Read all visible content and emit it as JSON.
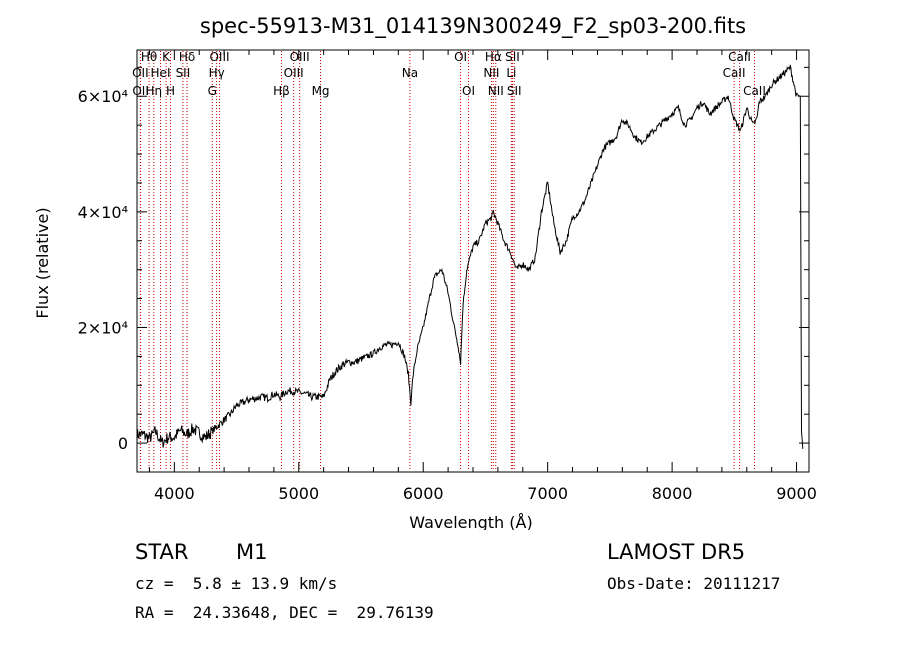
{
  "chart_data": {
    "type": "line",
    "title": "spec-55913-M31_014139N300249_F2_sp03-200.fits",
    "xlabel": "Wavelength (Å)",
    "ylabel": "Flux (relative)",
    "xlim": [
      3700,
      9100
    ],
    "ylim": [
      -5000,
      68000
    ],
    "x_ticks": [
      4000,
      5000,
      6000,
      7000,
      8000,
      9000
    ],
    "x_tick_labels": [
      "4000",
      "5000",
      "6000",
      "7000",
      "8000",
      "9000"
    ],
    "y_ticks": [
      0,
      20000,
      40000,
      60000
    ],
    "y_tick_labels": [
      "0",
      "2×10⁴",
      "4×10⁴",
      "6×10⁴"
    ],
    "grid": false,
    "line_color": "#000000",
    "marker_color": "#cc0000",
    "series": [
      {
        "x": [
          3700,
          3750,
          3800,
          3850,
          3900,
          3950,
          4000,
          4050,
          4100,
          4150,
          4200,
          4250,
          4300,
          4350,
          4400,
          4450,
          4500,
          4550,
          4600,
          4650,
          4700,
          4750,
          4800,
          4850,
          4900,
          4950,
          5000,
          5050,
          5100,
          5150,
          5200,
          5250,
          5300,
          5350,
          5400,
          5450,
          5500,
          5550,
          5600,
          5650,
          5700,
          5750,
          5800,
          5850,
          5880,
          5900,
          5920,
          5950,
          6000,
          6050,
          6080,
          6100,
          6150,
          6200,
          6250,
          6280,
          6300,
          6320,
          6350,
          6400,
          6450,
          6500,
          6550,
          6563,
          6600,
          6650,
          6700,
          6750,
          6800,
          6850,
          6900,
          6950,
          7000,
          7050,
          7100,
          7150,
          7200,
          7250,
          7300,
          7350,
          7400,
          7450,
          7500,
          7550,
          7600,
          7650,
          7700,
          7750,
          7800,
          7850,
          7900,
          7950,
          8000,
          8050,
          8100,
          8150,
          8200,
          8250,
          8300,
          8350,
          8400,
          8450,
          8500,
          8550,
          8600,
          8650,
          8680,
          8700,
          8750,
          8800,
          8850,
          8900,
          8950,
          9000,
          9030,
          9040,
          9050
        ],
        "y": [
          1500,
          1500,
          800,
          2000,
          0,
          1000,
          1000,
          2200,
          1500,
          2500,
          1700,
          1000,
          2000,
          3000,
          4000,
          5000,
          6500,
          7000,
          7500,
          7700,
          8000,
          7800,
          8500,
          8000,
          9000,
          9000,
          8800,
          8500,
          8000,
          8000,
          8000,
          11000,
          12500,
          13500,
          14000,
          14000,
          14500,
          15000,
          15500,
          16500,
          17000,
          17000,
          17500,
          15000,
          12000,
          7000,
          12000,
          16000,
          20000,
          25000,
          28000,
          29000,
          30000,
          26000,
          20000,
          17000,
          14000,
          24000,
          30000,
          34000,
          35000,
          38000,
          39000,
          40000,
          38000,
          35000,
          33000,
          30000,
          31000,
          30000,
          32000,
          40000,
          45000,
          38000,
          33000,
          35000,
          39000,
          40000,
          42000,
          45000,
          48000,
          51000,
          52000,
          53000,
          56000,
          55000,
          53000,
          52000,
          53000,
          54000,
          55000,
          56000,
          57000,
          58000,
          55000,
          56000,
          58000,
          59000,
          57000,
          58000,
          59000,
          60000,
          56000,
          54000,
          58000,
          55000,
          56000,
          59000,
          60000,
          62000,
          63000,
          64000,
          65000,
          60000,
          60000,
          2000,
          -1000
        ]
      }
    ],
    "lines": [
      {
        "name": "Hθ",
        "x": 3797
      },
      {
        "name": "OII",
        "x": 3727
      },
      {
        "name": "OII",
        "x": 3729
      },
      {
        "name": "HeI",
        "x": 3889
      },
      {
        "name": "Hη",
        "x": 3835
      },
      {
        "name": "K",
        "x": 3934
      },
      {
        "name": "H",
        "x": 3969
      },
      {
        "name": "SII",
        "x": 4069
      },
      {
        "name": "Hδ",
        "x": 4102
      },
      {
        "name": "OIII",
        "x": 4363
      },
      {
        "name": "Hγ",
        "x": 4340
      },
      {
        "name": "G",
        "x": 4305
      },
      {
        "name": "Hβ",
        "x": 4861
      },
      {
        "name": "OIII",
        "x": 5007
      },
      {
        "name": "OIII",
        "x": 4959
      },
      {
        "name": "Mg",
        "x": 5175
      },
      {
        "name": "Na",
        "x": 5893
      },
      {
        "name": "OI",
        "x": 6300
      },
      {
        "name": "OI",
        "x": 6364
      },
      {
        "name": "Hα",
        "x": 6563
      },
      {
        "name": "NII",
        "x": 6548
      },
      {
        "name": "NII",
        "x": 6583
      },
      {
        "name": "SII",
        "x": 6717
      },
      {
        "name": "Li",
        "x": 6708
      },
      {
        "name": "SII",
        "x": 6731
      },
      {
        "name": "CaII",
        "x": 8542
      },
      {
        "name": "CaII",
        "x": 8498
      },
      {
        "name": "CaII",
        "x": 8662
      }
    ]
  },
  "info": {
    "object_type": "STAR",
    "subclass": "M1",
    "survey": "LAMOST DR5",
    "redshift": "cz =  5.8 ± 13.9 km/s",
    "obs_date": "Obs-Date: 20111217",
    "coords": "RA =  24.33648, DEC =  29.76139"
  }
}
